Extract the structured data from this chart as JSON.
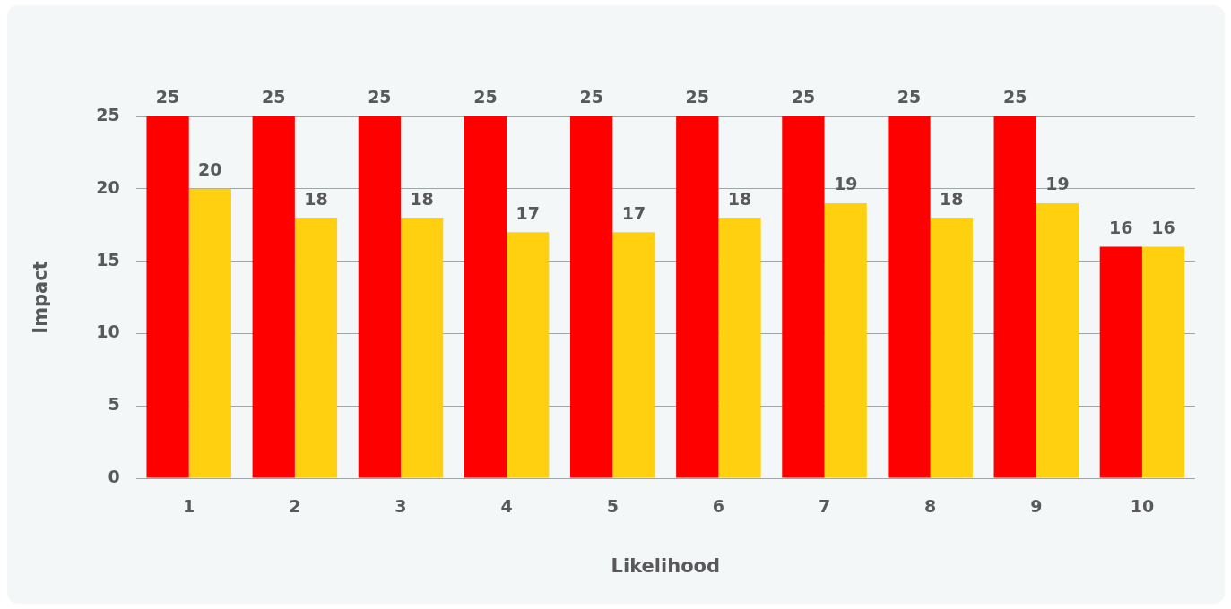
{
  "chart_data": {
    "type": "bar",
    "xlabel": "Likelihood",
    "ylabel": "Impact",
    "categories": [
      "1",
      "2",
      "3",
      "4",
      "5",
      "6",
      "7",
      "8",
      "9",
      "10"
    ],
    "series": [
      {
        "color": "#ff0000",
        "values": [
          25,
          25,
          25,
          25,
          25,
          25,
          25,
          25,
          25,
          16
        ]
      },
      {
        "color": "#ffd010",
        "values": [
          20,
          18,
          18,
          17,
          17,
          18,
          19,
          18,
          19,
          16
        ]
      }
    ],
    "ylim": [
      0,
      25
    ],
    "yticks": [
      0,
      5,
      10,
      15,
      20,
      25
    ],
    "grid": "y",
    "legend": false,
    "data_labels": true
  }
}
